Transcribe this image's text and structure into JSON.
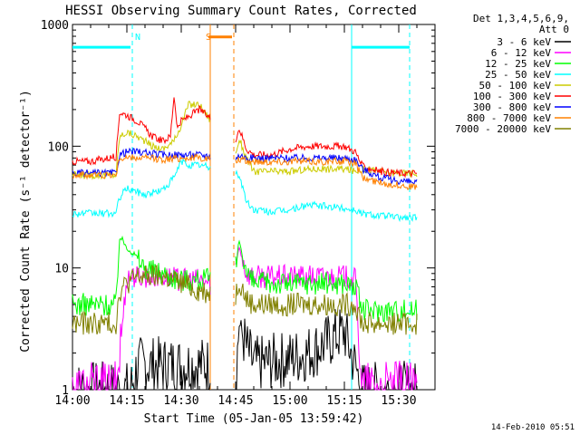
{
  "chart_data": {
    "type": "line",
    "title": "HESSI Observing Summary Count Rates, Corrected",
    "xlabel": "Start Time (05-Jan-05 13:59:42)",
    "ylabel": "Corrected Count Rate (s⁻¹ detector⁻¹)",
    "y_scale": "log",
    "ylim": [
      1,
      1000
    ],
    "xlim_minutes": [
      0,
      100
    ],
    "x_ticks": [
      {
        "t": 0,
        "label": "14:00"
      },
      {
        "t": 15,
        "label": "14:15"
      },
      {
        "t": 30,
        "label": "14:30"
      },
      {
        "t": 45,
        "label": "14:45"
      },
      {
        "t": 60,
        "label": "15:00"
      },
      {
        "t": 75,
        "label": "15:15"
      },
      {
        "t": 90,
        "label": "15:30"
      }
    ],
    "y_ticks": [
      {
        "v": 1,
        "label": "1"
      },
      {
        "v": 10,
        "label": "10"
      },
      {
        "v": 100,
        "label": "100"
      },
      {
        "v": 1000,
        "label": "1000"
      }
    ],
    "legend_header": [
      "Det 1,3,4,5,6,9,",
      "Att 0"
    ],
    "legend_placement": "right",
    "date_stamp": "14-Feb-2010 05:51",
    "series": [
      {
        "name": "3 - 6 keV",
        "color": "#000000",
        "x": [
          0,
          10,
          16,
          18,
          20,
          25,
          30,
          35,
          38,
          45,
          46,
          48,
          50,
          55,
          60,
          65,
          70,
          72,
          75,
          80,
          85,
          90,
          95
        ],
        "y": [
          1,
          1,
          1,
          1.6,
          1.6,
          1.6,
          1.6,
          1.6,
          1.6,
          1.2,
          3.5,
          2.2,
          1.6,
          1.7,
          1.8,
          2.0,
          2.4,
          2.7,
          3.0,
          1,
          1,
          1,
          1
        ]
      },
      {
        "name": "6 - 12 keV",
        "color": "#ff00ff",
        "x": [
          0,
          10,
          12,
          15,
          18,
          20,
          25,
          30,
          35,
          38,
          45,
          46,
          48,
          50,
          55,
          60,
          65,
          70,
          75,
          78,
          80,
          85,
          90,
          95
        ],
        "y": [
          1,
          1,
          1,
          8.5,
          8.5,
          8.5,
          8.5,
          8.0,
          8.0,
          7.5,
          10,
          15,
          9,
          8.5,
          8.5,
          8.5,
          8.5,
          8.5,
          8.5,
          8.0,
          1,
          1,
          1,
          1
        ]
      },
      {
        "name": "12 - 25 keV",
        "color": "#00ff00",
        "x": [
          0,
          12,
          13,
          15,
          18,
          20,
          25,
          30,
          35,
          38,
          45,
          46,
          48,
          50,
          55,
          60,
          65,
          70,
          75,
          78,
          80,
          85,
          90,
          95
        ],
        "y": [
          5,
          5,
          18,
          15,
          12,
          10,
          9,
          8,
          8,
          8,
          10,
          17,
          9,
          7.5,
          7.5,
          7.5,
          7.5,
          7.5,
          7.5,
          7.0,
          4.5,
          4.5,
          4.5,
          4.5
        ]
      },
      {
        "name": "25 - 50 keV",
        "color": "#00ffff",
        "x": [
          0,
          12,
          13,
          15,
          18,
          20,
          25,
          28,
          30,
          32,
          35,
          45,
          46,
          48,
          50,
          55,
          60,
          65,
          70,
          75,
          78,
          80,
          85,
          90,
          95
        ],
        "y": [
          28,
          28,
          38,
          45,
          42,
          40,
          44,
          55,
          75,
          70,
          70,
          60,
          58,
          35,
          30,
          29,
          30,
          33,
          32,
          31,
          30,
          28,
          27,
          26,
          26
        ]
      },
      {
        "name": "50 - 100 keV",
        "color": "#cccc00",
        "x": [
          0,
          12,
          13,
          15,
          18,
          20,
          22,
          25,
          28,
          30,
          32,
          35,
          45,
          46,
          48,
          50,
          55,
          60,
          65,
          70,
          75,
          78,
          80,
          85,
          90,
          95
        ],
        "y": [
          58,
          58,
          120,
          130,
          120,
          110,
          100,
          95,
          110,
          150,
          220,
          220,
          85,
          115,
          80,
          62,
          62,
          62,
          65,
          65,
          65,
          62,
          65,
          62,
          60,
          60
        ]
      },
      {
        "name": "100 - 300 keV",
        "color": "#ff0000",
        "x": [
          0,
          5,
          12,
          13,
          15,
          18,
          20,
          22,
          25,
          27,
          28,
          29,
          30,
          35,
          45,
          46,
          48,
          50,
          55,
          60,
          65,
          70,
          75,
          78,
          80,
          85,
          90,
          95
        ],
        "y": [
          75,
          75,
          82,
          190,
          180,
          160,
          140,
          120,
          110,
          120,
          260,
          140,
          160,
          200,
          115,
          140,
          95,
          85,
          85,
          95,
          100,
          100,
          100,
          90,
          68,
          62,
          60,
          60
        ]
      },
      {
        "name": "300 - 800 keV",
        "color": "#0000ff",
        "x": [
          0,
          12,
          13,
          15,
          18,
          20,
          25,
          30,
          35,
          45,
          46,
          48,
          50,
          55,
          60,
          65,
          70,
          75,
          78,
          80,
          85,
          90,
          95
        ],
        "y": [
          60,
          60,
          85,
          90,
          90,
          88,
          85,
          85,
          85,
          78,
          85,
          80,
          80,
          80,
          80,
          80,
          80,
          80,
          78,
          65,
          55,
          52,
          50
        ]
      },
      {
        "name": "800 - 7000 keV",
        "color": "#ff8000",
        "x": [
          0,
          12,
          13,
          15,
          18,
          20,
          25,
          30,
          35,
          45,
          46,
          48,
          50,
          55,
          60,
          65,
          70,
          75,
          78,
          80,
          85,
          90,
          95
        ],
        "y": [
          58,
          58,
          80,
          80,
          80,
          80,
          78,
          80,
          80,
          75,
          78,
          75,
          75,
          75,
          75,
          75,
          75,
          75,
          72,
          55,
          50,
          48,
          46
        ]
      },
      {
        "name": "7000 - 20000 keV",
        "color": "#808000",
        "x": [
          0,
          12,
          13,
          15,
          18,
          20,
          25,
          30,
          35,
          45,
          46,
          48,
          50,
          55,
          60,
          65,
          70,
          75,
          78,
          80,
          85,
          90,
          95
        ],
        "y": [
          3.5,
          3.5,
          6.5,
          7.5,
          8.5,
          8.5,
          8.5,
          7.5,
          6.5,
          6.0,
          8.0,
          5.5,
          5.0,
          5.0,
          5.0,
          5.0,
          5.0,
          5.0,
          5.0,
          3.5,
          3.5,
          3.5,
          3.5
        ]
      }
    ],
    "annotations": [
      {
        "text": "N",
        "color": "#00ffff",
        "t": 16.5
      },
      {
        "text": "S",
        "color": "#ff8000",
        "t": 36
      }
    ],
    "night_segments": [
      {
        "t0": 0,
        "t1": 16
      },
      {
        "t0": 77,
        "t1": 93
      }
    ],
    "saa_segments": [
      {
        "t0": 37.5,
        "t1": 44
      }
    ],
    "attenuator_gap": {
      "t0": 38,
      "t1": 45
    }
  }
}
